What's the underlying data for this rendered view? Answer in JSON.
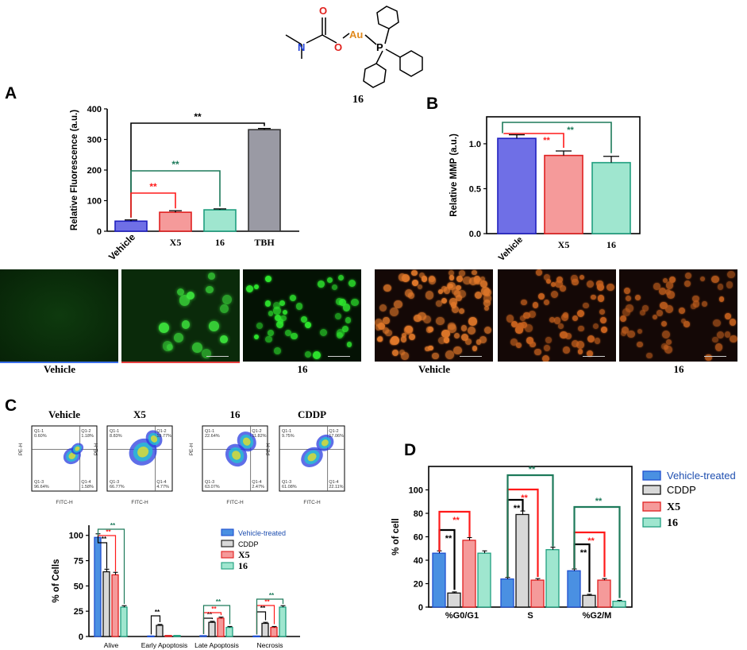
{
  "compound": {
    "label": "16",
    "atoms": {
      "O1": "O",
      "O2": "O",
      "N": "N",
      "Au": "Au",
      "P": "P"
    }
  },
  "panel_letters": {
    "A": "A",
    "B": "B",
    "C": "C",
    "D": "D"
  },
  "colors": {
    "vehicle_blue": "#6f6fe6",
    "x5_red": "#f59a9a",
    "c16_teal": "#9fe6cf",
    "tbh_gray": "#9a9aa4",
    "cddp_gray": "#d8d8d8",
    "vehicle_blue_bright": "#4a90e2",
    "sig_black": "#000000",
    "sig_red": "#ff1a1a",
    "sig_green": "#1d7a5a",
    "au_orange": "#e08a1e",
    "O_red": "#e0201c",
    "N_blue": "#1f3fd6"
  },
  "micro_labels": [
    "Vehicle",
    "16",
    "Vehicle",
    "16"
  ],
  "flow_titles": [
    "Vehicle",
    "X5",
    "16",
    "CDDP"
  ],
  "flow_quadrants": [
    {
      "q1": "Q1-1",
      "v1": "0.60%",
      "q2": "Q1-2",
      "v2": "1.18%",
      "q3": "Q1-3",
      "v3": "96.64%",
      "q4": "Q1-4",
      "v4": "1.58%"
    },
    {
      "q1": "Q1-1",
      "v1": "8.83%",
      "q2": "Q1-2",
      "v2": "19.77%",
      "q3": "Q1-3",
      "v3": "66.77%",
      "q4": "Q1-4",
      "v4": "4.77%"
    },
    {
      "q1": "Q1-1",
      "v1": "22.64%",
      "q2": "Q1-2",
      "v2": "11.82%",
      "q3": "Q1-3",
      "v3": "63.07%",
      "q4": "Q1-4",
      "v4": "2.47%"
    },
    {
      "q1": "Q1-1",
      "v1": "9.75%",
      "q2": "Q1-2",
      "v2": "17.06%",
      "q3": "Q1-3",
      "v3": "61.08%",
      "q4": "Q1-4",
      "v4": "22.11%"
    }
  ],
  "flow_axes": {
    "x": "FITC-H",
    "y": "PE-H"
  },
  "chart_data": [
    {
      "id": "A",
      "type": "bar",
      "categories": [
        "Vehicle",
        "X5",
        "16",
        "TBH"
      ],
      "values": [
        33,
        62,
        70,
        332
      ],
      "errors": [
        4,
        5,
        3,
        4
      ],
      "ylabel": "Relative Fluorescence (a.u.)",
      "ylim": [
        0,
        400
      ],
      "yticks": [
        "0",
        "100",
        "200",
        "300",
        "400"
      ],
      "significance": [
        {
          "from": 0,
          "to": 3,
          "label": "**",
          "color": "black"
        },
        {
          "from": 0,
          "to": 2,
          "label": "**",
          "color": "green"
        },
        {
          "from": 0,
          "to": 1,
          "label": "**",
          "color": "red"
        }
      ]
    },
    {
      "id": "B",
      "type": "bar",
      "categories": [
        "Vehicle",
        "X5",
        "16"
      ],
      "values": [
        1.06,
        0.87,
        0.79
      ],
      "errors": [
        0.04,
        0.05,
        0.07
      ],
      "ylabel": "Relative MMP (a.u.)",
      "ylim": [
        0,
        1.3
      ],
      "yticks": [
        "0.0",
        "0.5",
        "1.0"
      ],
      "significance": [
        {
          "from": 0,
          "to": 2,
          "label": "**",
          "color": "green"
        },
        {
          "from": 0,
          "to": 1,
          "label": "**",
          "color": "red"
        }
      ]
    },
    {
      "id": "C",
      "type": "bar",
      "categories": [
        "Alive",
        "Early Apoptosis",
        "Late Apoptosis",
        "Necrosis"
      ],
      "series": [
        {
          "name": "Vehicle-treated",
          "values": [
            98,
            0.5,
            0.8,
            0.5
          ]
        },
        {
          "name": "CDDP",
          "values": [
            64,
            11,
            14,
            13
          ]
        },
        {
          "name": "X5",
          "values": [
            61,
            1,
            18,
            9
          ]
        },
        {
          "name": "16",
          "values": [
            29,
            1,
            9,
            29
          ]
        }
      ],
      "ylabel": "% of Cells",
      "ylim": [
        0,
        110
      ],
      "yticks": [
        "0",
        "25",
        "50",
        "75",
        "100"
      ],
      "significance_label": "**"
    },
    {
      "id": "D",
      "type": "bar",
      "categories": [
        "%G0/G1",
        "S",
        "%G2/M"
      ],
      "series": [
        {
          "name": "Vehicle-treated",
          "values": [
            46,
            24,
            31
          ]
        },
        {
          "name": "CDDP",
          "values": [
            12,
            79,
            10
          ]
        },
        {
          "name": "X5",
          "values": [
            57,
            23,
            23
          ]
        },
        {
          "name": "16",
          "values": [
            46,
            49,
            5
          ]
        }
      ],
      "ylabel": "% of cell",
      "ylim": [
        0,
        120
      ],
      "yticks": [
        "0",
        "20",
        "40",
        "60",
        "80",
        "100"
      ],
      "significance_label": "**"
    }
  ]
}
